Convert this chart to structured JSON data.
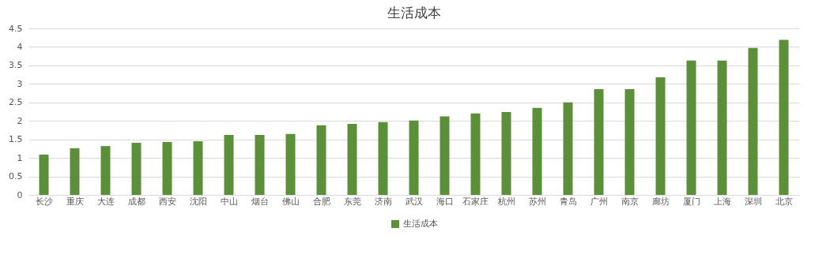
{
  "chart_data": {
    "type": "bar",
    "title": "生活成本",
    "categories": [
      "长沙",
      "重庆",
      "大连",
      "成都",
      "西安",
      "沈阳",
      "中山",
      "烟台",
      "佛山",
      "合肥",
      "东莞",
      "济南",
      "武汉",
      "海口",
      "石家庄",
      "杭州",
      "苏州",
      "青岛",
      "广州",
      "南京",
      "廊坊",
      "厦门",
      "上海",
      "深圳",
      "北京"
    ],
    "series": [
      {
        "name": "生活成本",
        "color": "#5b8f3a",
        "values": [
          1.09,
          1.26,
          1.32,
          1.41,
          1.43,
          1.45,
          1.62,
          1.62,
          1.65,
          1.88,
          1.92,
          1.97,
          2.01,
          2.12,
          2.2,
          2.24,
          2.35,
          2.5,
          2.86,
          2.86,
          3.18,
          3.63,
          3.63,
          3.97,
          4.19
        ]
      }
    ],
    "ylim": [
      0,
      4.5
    ],
    "yticks": [
      0,
      0.5,
      1,
      1.5,
      2,
      2.5,
      3,
      3.5,
      4,
      4.5
    ],
    "grid": "y",
    "legend": "bottom"
  }
}
